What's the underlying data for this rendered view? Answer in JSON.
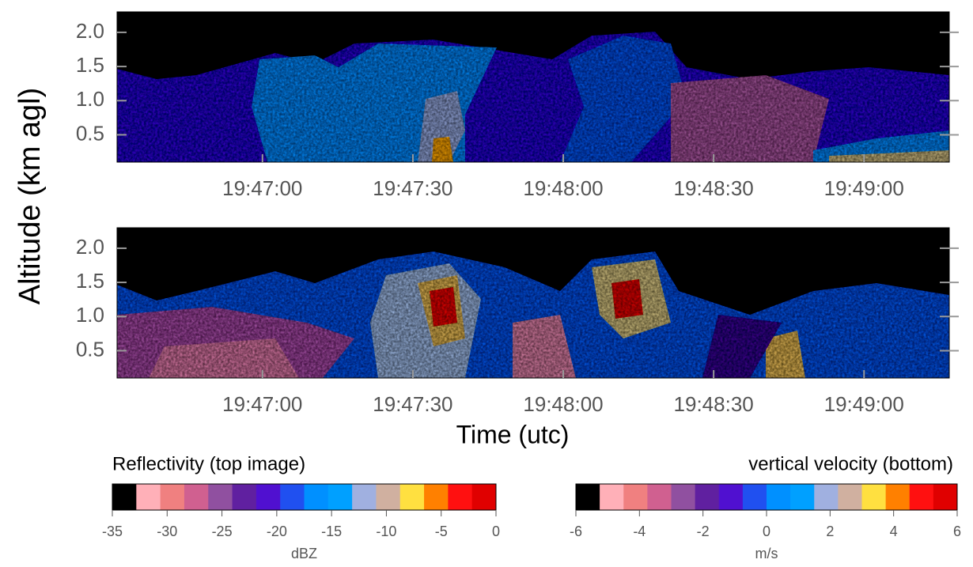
{
  "figure": {
    "ylabel": "Altitude (km agl)",
    "xlabel": "Time (utc)"
  },
  "chart_data": [
    {
      "type": "heatmap",
      "xlim": [
        "19:46:31",
        "19:49:17"
      ],
      "xticks": [
        "19:47:00",
        "19:47:30",
        "19:48:00",
        "19:48:30",
        "19:49:00"
      ],
      "ylim": [
        0.1,
        2.3
      ],
      "yticks": [
        0.5,
        {
          "value": 1,
          "label": "1.0"
        },
        1.5,
        {
          "value": 2,
          "label": "2.0"
        }
      ],
      "colorbar": {
        "title": "Reflectivity (top image)",
        "unit": "dBZ",
        "clim": [
          -35,
          0
        ],
        "ticks": [
          -35,
          -30,
          -25,
          -20,
          -15,
          -10,
          -5,
          0
        ],
        "colors": [
          "#000000",
          "#ffb0b8",
          "#f08080",
          "#d06090",
          "#9050a0",
          "#6020a0",
          "#5010d0",
          "#2050f0",
          "#0090ff",
          "#00a0ff",
          "#a0b0e0",
          "#d0b0a0",
          "#ffe040",
          "#ff8000",
          "#ff1010",
          "#e00000"
        ]
      }
    },
    {
      "type": "heatmap",
      "xlim": [
        "19:46:31",
        "19:49:17"
      ],
      "xticks": [
        "19:47:00",
        "19:47:30",
        "19:48:00",
        "19:48:30",
        "19:49:00"
      ],
      "ylim": [
        0.1,
        2.3
      ],
      "yticks": [
        0.5,
        {
          "value": 1,
          "label": "1.0"
        },
        1.5,
        {
          "value": 2,
          "label": "2.0"
        }
      ],
      "colorbar": {
        "title": "vertical velocity (bottom)",
        "unit": "m/s",
        "clim": [
          -6,
          6
        ],
        "ticks": [
          -6,
          -4,
          -2,
          0,
          2,
          4,
          6
        ],
        "colors": [
          "#000000",
          "#ffb0b8",
          "#f08080",
          "#d06090",
          "#9050a0",
          "#6020a0",
          "#5010d0",
          "#2050f0",
          "#0090ff",
          "#00a0ff",
          "#a0b0e0",
          "#d0b0a0",
          "#ffe040",
          "#ff8000",
          "#ff1010",
          "#e00000"
        ]
      }
    }
  ]
}
